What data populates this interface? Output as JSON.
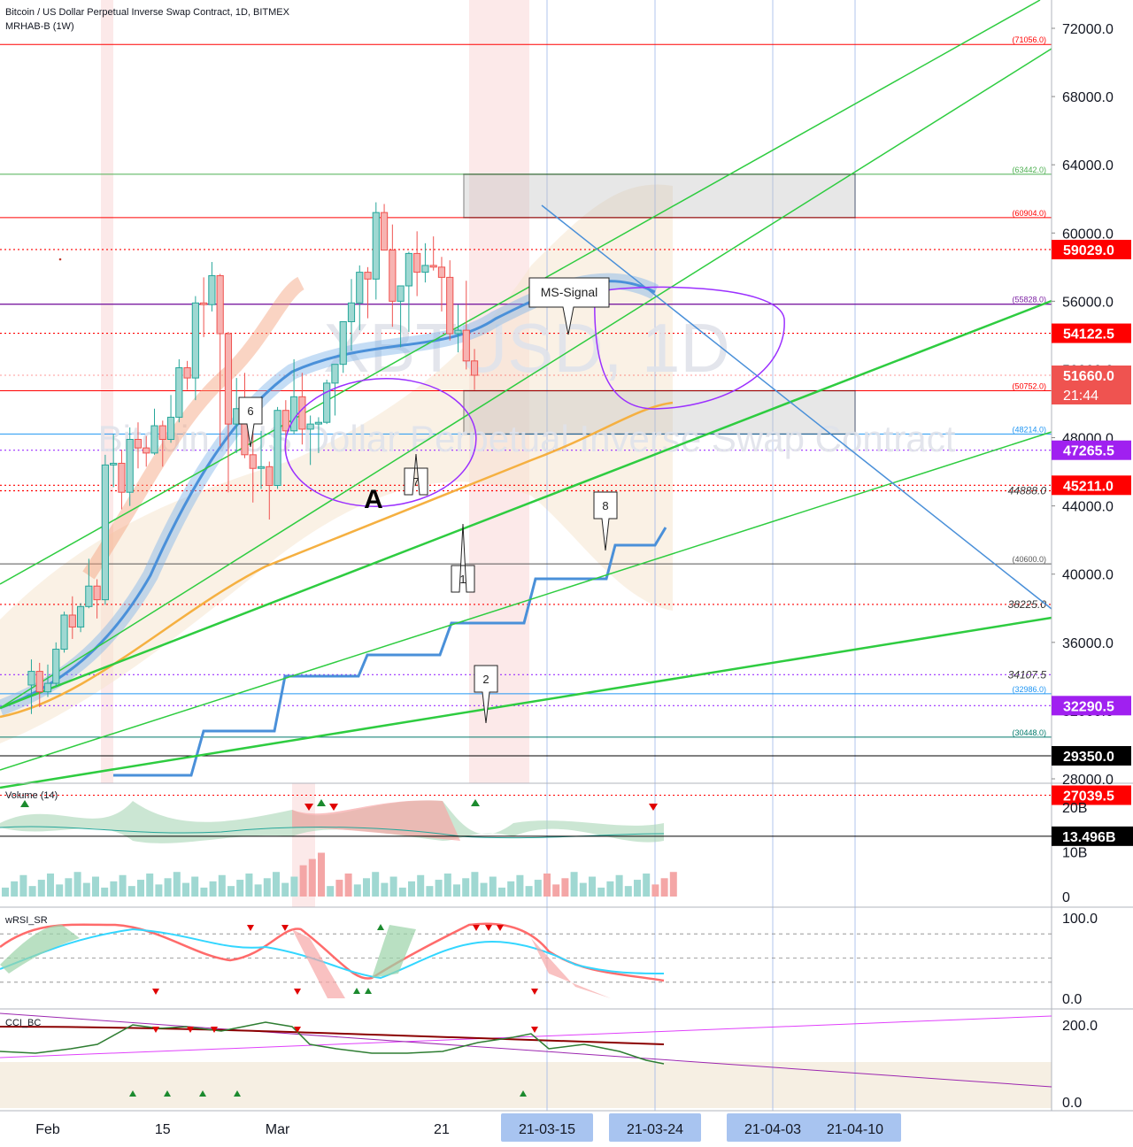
{
  "header": {
    "title": "Bitcoin / US Dollar Perpetual Inverse Swap Contract, 1D, BITMEX",
    "indicator": "MRHAB-B (1W)"
  },
  "watermark": {
    "symbol": "XBTUSD, 1D",
    "name": "Bitcoin / US Dollar Perpetual Inverse Swap Contract"
  },
  "colors": {
    "bull": "#26a69a",
    "bear": "#ef5350",
    "ma_blue": "#4a90d9",
    "ma_orange": "#f5b041",
    "trend_green": "#2ecc40",
    "signal_purple": "#9b30ff",
    "red_level": "#ff0000",
    "highlight_bg": "#fbe3e3"
  },
  "chart_data": {
    "type": "candlestick",
    "price_axis": {
      "ylim": [
        26500,
        73000
      ],
      "ticks": [
        "72000.0",
        "68000.0",
        "64000.0",
        "60000.0",
        "56000.0",
        "52000.0",
        "48000.0",
        "44000.0",
        "40000.0",
        "36000.0",
        "32000.0",
        "28000.0"
      ],
      "tick_values": [
        72000,
        68000,
        64000,
        60000,
        56000,
        52000,
        48000,
        44000,
        40000,
        36000,
        32000,
        28000
      ]
    },
    "time_axis": {
      "labels": [
        "Feb",
        "15",
        "Mar",
        "21"
      ],
      "label_dates": [
        "2021-02-01",
        "2021-02-15",
        "2021-03-01",
        "2021-03-21"
      ],
      "highlighted": [
        "21-03-15",
        "21-03-24",
        "21-04-03",
        "21-04-10"
      ]
    },
    "candles": [
      {
        "d": "2021-01-30",
        "o": 33500,
        "h": 35000,
        "l": 31800,
        "c": 34300
      },
      {
        "d": "2021-01-31",
        "o": 34300,
        "h": 34800,
        "l": 32200,
        "c": 33100
      },
      {
        "d": "2021-02-01",
        "o": 33100,
        "h": 34700,
        "l": 32800,
        "c": 33600
      },
      {
        "d": "2021-02-02",
        "o": 33600,
        "h": 36000,
        "l": 33400,
        "c": 35600
      },
      {
        "d": "2021-02-03",
        "o": 35600,
        "h": 37800,
        "l": 35400,
        "c": 37600
      },
      {
        "d": "2021-02-04",
        "o": 37600,
        "h": 38700,
        "l": 36200,
        "c": 36900
      },
      {
        "d": "2021-02-05",
        "o": 36900,
        "h": 38300,
        "l": 36600,
        "c": 38100
      },
      {
        "d": "2021-02-06",
        "o": 38100,
        "h": 40900,
        "l": 38000,
        "c": 39300
      },
      {
        "d": "2021-02-07",
        "o": 39300,
        "h": 39700,
        "l": 37400,
        "c": 38500
      },
      {
        "d": "2021-02-08",
        "o": 38500,
        "h": 47000,
        "l": 38200,
        "c": 46400
      },
      {
        "d": "2021-02-09",
        "o": 46400,
        "h": 48200,
        "l": 45100,
        "c": 46500
      },
      {
        "d": "2021-02-10",
        "o": 46500,
        "h": 47300,
        "l": 43800,
        "c": 44800
      },
      {
        "d": "2021-02-11",
        "o": 44800,
        "h": 48600,
        "l": 44000,
        "c": 47900
      },
      {
        "d": "2021-02-12",
        "o": 47900,
        "h": 48900,
        "l": 46200,
        "c": 47400
      },
      {
        "d": "2021-02-13",
        "o": 47400,
        "h": 48100,
        "l": 46300,
        "c": 47100
      },
      {
        "d": "2021-02-14",
        "o": 47100,
        "h": 49700,
        "l": 47000,
        "c": 48700
      },
      {
        "d": "2021-02-15",
        "o": 48700,
        "h": 49000,
        "l": 46300,
        "c": 47900
      },
      {
        "d": "2021-02-16",
        "o": 47900,
        "h": 50500,
        "l": 47700,
        "c": 49200
      },
      {
        "d": "2021-02-17",
        "o": 49200,
        "h": 52600,
        "l": 48900,
        "c": 52100
      },
      {
        "d": "2021-02-18",
        "o": 52100,
        "h": 52500,
        "l": 50800,
        "c": 51500
      },
      {
        "d": "2021-02-19",
        "o": 51500,
        "h": 56300,
        "l": 50200,
        "c": 55900
      },
      {
        "d": "2021-02-20",
        "o": 55900,
        "h": 57400,
        "l": 53900,
        "c": 55800
      },
      {
        "d": "2021-02-21",
        "o": 55800,
        "h": 58300,
        "l": 55400,
        "c": 57500
      },
      {
        "d": "2021-02-22",
        "o": 57500,
        "h": 57600,
        "l": 47500,
        "c": 54100
      },
      {
        "d": "2021-02-23",
        "o": 54100,
        "h": 54200,
        "l": 44800,
        "c": 48800
      },
      {
        "d": "2021-02-24",
        "o": 48800,
        "h": 51500,
        "l": 47100,
        "c": 49700
      },
      {
        "d": "2021-02-25",
        "o": 49700,
        "h": 51800,
        "l": 46800,
        "c": 47000
      },
      {
        "d": "2021-02-26",
        "o": 47000,
        "h": 48500,
        "l": 44200,
        "c": 46200
      },
      {
        "d": "2021-02-27",
        "o": 46200,
        "h": 48400,
        "l": 45000,
        "c": 46300
      },
      {
        "d": "2021-02-28",
        "o": 46300,
        "h": 46600,
        "l": 43200,
        "c": 45200
      },
      {
        "d": "2021-03-01",
        "o": 45200,
        "h": 49800,
        "l": 45000,
        "c": 49600
      },
      {
        "d": "2021-03-02",
        "o": 49600,
        "h": 50200,
        "l": 47100,
        "c": 48400
      },
      {
        "d": "2021-03-03",
        "o": 48400,
        "h": 52600,
        "l": 48200,
        "c": 50400
      },
      {
        "d": "2021-03-04",
        "o": 50400,
        "h": 51800,
        "l": 47600,
        "c": 48500
      },
      {
        "d": "2021-03-05",
        "o": 48500,
        "h": 49300,
        "l": 46400,
        "c": 48800
      },
      {
        "d": "2021-03-06",
        "o": 48800,
        "h": 49200,
        "l": 47100,
        "c": 48900
      },
      {
        "d": "2021-03-07",
        "o": 48900,
        "h": 51400,
        "l": 48800,
        "c": 51200
      },
      {
        "d": "2021-03-08",
        "o": 51200,
        "h": 52300,
        "l": 49300,
        "c": 52300
      },
      {
        "d": "2021-03-09",
        "o": 52300,
        "h": 54800,
        "l": 51800,
        "c": 54800
      },
      {
        "d": "2021-03-10",
        "o": 54800,
        "h": 57300,
        "l": 53100,
        "c": 55900
      },
      {
        "d": "2021-03-11",
        "o": 55900,
        "h": 58100,
        "l": 54300,
        "c": 57700
      },
      {
        "d": "2021-03-12",
        "o": 57700,
        "h": 58000,
        "l": 55000,
        "c": 57300
      },
      {
        "d": "2021-03-13",
        "o": 57300,
        "h": 61800,
        "l": 56100,
        "c": 61200
      },
      {
        "d": "2021-03-14",
        "o": 61200,
        "h": 61700,
        "l": 59000,
        "c": 59000
      },
      {
        "d": "2021-03-15",
        "o": 59000,
        "h": 60500,
        "l": 54500,
        "c": 56000
      },
      {
        "d": "2021-03-16",
        "o": 56000,
        "h": 56900,
        "l": 53300,
        "c": 56900
      },
      {
        "d": "2021-03-17",
        "o": 56900,
        "h": 58900,
        "l": 54200,
        "c": 58800
      },
      {
        "d": "2021-03-18",
        "o": 58800,
        "h": 60100,
        "l": 56300,
        "c": 57700
      },
      {
        "d": "2021-03-19",
        "o": 57700,
        "h": 59400,
        "l": 57100,
        "c": 58100
      },
      {
        "d": "2021-03-20",
        "o": 58100,
        "h": 59800,
        "l": 57800,
        "c": 58000
      },
      {
        "d": "2021-03-21",
        "o": 58000,
        "h": 58600,
        "l": 55400,
        "c": 57400
      },
      {
        "d": "2021-03-22",
        "o": 57400,
        "h": 58400,
        "l": 53700,
        "c": 54100
      },
      {
        "d": "2021-03-23",
        "o": 54100,
        "h": 55800,
        "l": 53000,
        "c": 54300
      },
      {
        "d": "2021-03-24",
        "o": 54300,
        "h": 57200,
        "l": 52000,
        "c": 52500
      },
      {
        "d": "2021-03-25",
        "o": 52500,
        "h": 53200,
        "l": 50800,
        "c": 51660
      }
    ],
    "right_labels": [
      {
        "text": "59029.0",
        "price": 59029,
        "style": "red"
      },
      {
        "text": "54122.5",
        "price": 54122.5,
        "style": "red"
      },
      {
        "text": "51660.0",
        "price": 51660,
        "style": "last"
      },
      {
        "text": "47265.5",
        "price": 47265.5,
        "style": "purple"
      },
      {
        "text": "45211.0",
        "price": 45211,
        "style": "red"
      },
      {
        "text": "32290.5",
        "price": 32290.5,
        "style": "purple"
      },
      {
        "text": "29350.0",
        "price": 29350,
        "style": "black"
      },
      {
        "text": "27039.5",
        "price": 27039.5,
        "style": "red"
      }
    ],
    "last_price": {
      "value": "51660.0",
      "countdown": "21:44"
    },
    "volume": {
      "label": "Volume (14)",
      "ticks": [
        "20B",
        "10B",
        "0"
      ],
      "tick_values": [
        20,
        10,
        0
      ],
      "value_label": "13.496B",
      "value": 13.496
    },
    "wrsi": {
      "label": "wRSI_SR",
      "ticks": [
        "100.0",
        "0.0"
      ],
      "tick_values": [
        100,
        0
      ]
    },
    "cci": {
      "label": "CCI_BC",
      "ticks": [
        "200.0",
        "0.0"
      ],
      "tick_values": [
        200,
        0
      ]
    }
  },
  "levels": [
    {
      "text": "(71056.0)",
      "price": 71056,
      "style": "red-solid"
    },
    {
      "text": "(63442.0)",
      "price": 63442,
      "style": "green-solid"
    },
    {
      "text": "(60904.0)",
      "price": 60904,
      "style": "red-solid"
    },
    {
      "text": "(55828.0)",
      "price": 55828,
      "style": "purple-solid"
    },
    {
      "text": "(50752.0)",
      "price": 50752,
      "style": "red-solid"
    },
    {
      "text": "(48214.0)",
      "price": 48214,
      "style": "blue-solid"
    },
    {
      "text": "(40600.0)",
      "price": 40600,
      "style": "grey-solid"
    },
    {
      "text": "(32986.0)",
      "price": 32986,
      "style": "blue-solid"
    },
    {
      "text": "(30448.0)",
      "price": 30448,
      "style": "teal-solid"
    },
    {
      "text": "44888.0",
      "price": 44888,
      "style": "red-dot"
    },
    {
      "text": "38225.0",
      "price": 38225,
      "style": "red-dot"
    },
    {
      "text": "34107.5",
      "price": 34107.5,
      "style": "purple-dot"
    }
  ],
  "annotations": {
    "letter": "A",
    "ms_signal": "MS-Signal",
    "callouts": [
      "6",
      "7",
      "1",
      "8",
      "2"
    ]
  }
}
